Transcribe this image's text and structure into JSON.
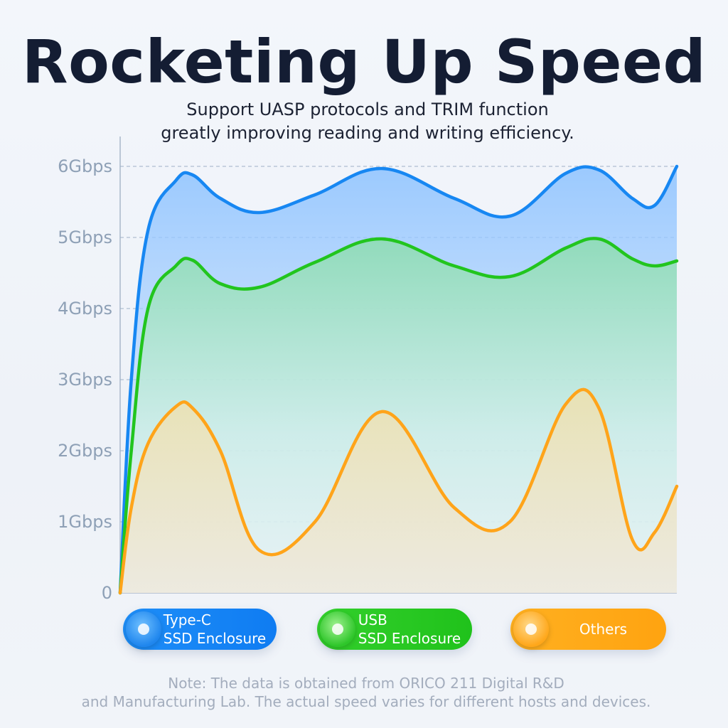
{
  "header": {
    "title": "Rocketing Up Speed",
    "subtitle_line1": "Support UASP protocols and TRIM function",
    "subtitle_line2": "greatly improving reading and writing efficiency."
  },
  "chart_data": {
    "type": "area",
    "title": "Rocketing Up Speed",
    "xlabel": "",
    "ylabel": "",
    "ylim": [
      0,
      6
    ],
    "yticks": [
      0,
      1,
      2,
      3,
      4,
      5,
      6
    ],
    "ytick_labels": [
      "0",
      "1Gbps",
      "2Gbps",
      "3Gbps",
      "4Gbps",
      "5Gbps",
      "6Gbps"
    ],
    "x": [
      0,
      0.02,
      0.05,
      0.1,
      0.13,
      0.18,
      0.25,
      0.35,
      0.47,
      0.6,
      0.7,
      0.8,
      0.86,
      0.92,
      0.96,
      1.0
    ],
    "grid": true,
    "legend": "bottom",
    "series": [
      {
        "name": "Type-C SSD Enclosure",
        "color": "#1787f2",
        "values": [
          0,
          3.0,
          5.1,
          5.8,
          5.88,
          5.55,
          5.35,
          5.6,
          5.97,
          5.55,
          5.3,
          5.9,
          5.95,
          5.55,
          5.45,
          6.0
        ]
      },
      {
        "name": "USB SSD Enclosure",
        "color": "#22c51e",
        "values": [
          0,
          2.0,
          4.0,
          4.6,
          4.68,
          4.35,
          4.3,
          4.65,
          4.98,
          4.6,
          4.45,
          4.85,
          4.98,
          4.7,
          4.6,
          4.67
        ]
      },
      {
        "name": "Others",
        "color": "#ffa41a",
        "values": [
          0,
          1.2,
          2.1,
          2.62,
          2.6,
          2.0,
          0.6,
          1.0,
          2.55,
          1.2,
          1.0,
          2.65,
          2.6,
          0.75,
          0.85,
          1.5
        ]
      }
    ]
  },
  "legend": {
    "typec_label": "Type-C\nSSD Enclosure",
    "usb_label": "USB\nSSD Enclosure",
    "others_label": "Others"
  },
  "note": {
    "line1": "Note: The data is obtained from ORICO 211 Digital R&D",
    "line2": "and Manufacturing Lab. The actual speed varies for different hosts and devices."
  }
}
